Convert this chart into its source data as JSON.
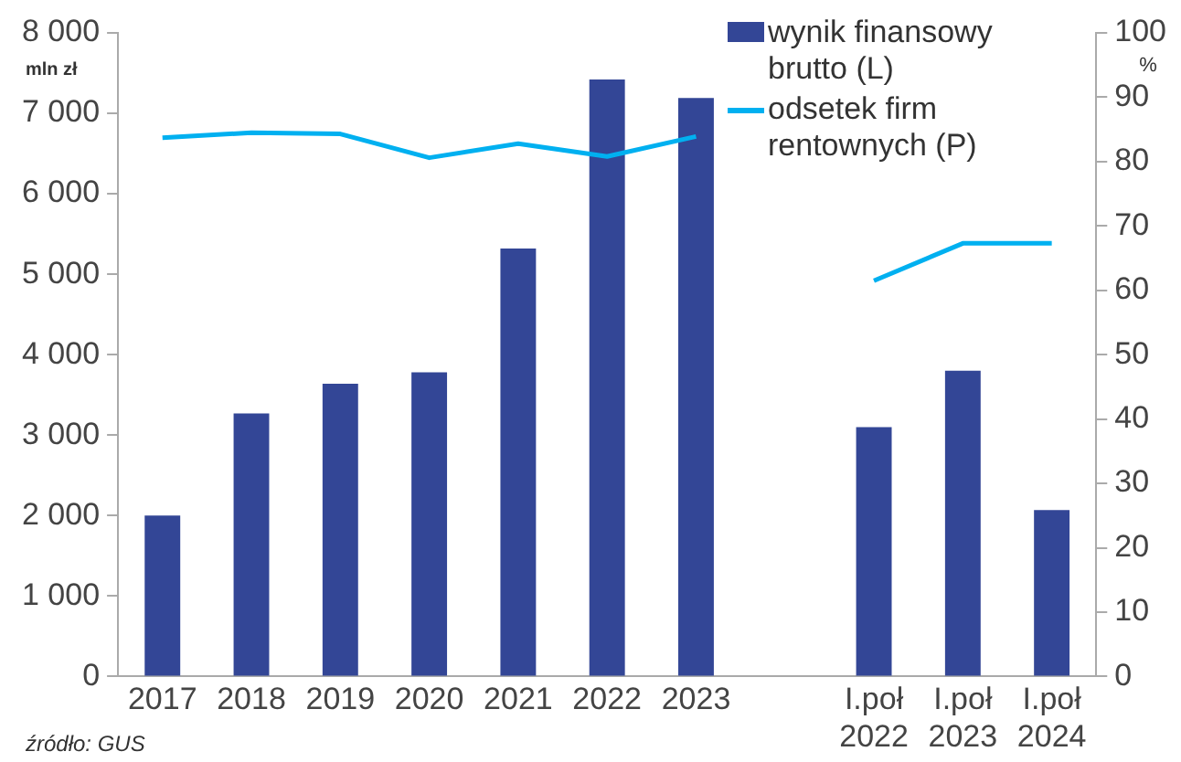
{
  "chart_data": {
    "type": "bar",
    "ylabel": "mln zł",
    "y2label": "%",
    "categories": [
      "2017",
      "2018",
      "2019",
      "2020",
      "2021",
      "2022",
      "2023",
      null,
      "I.poł 2022",
      "I.poł 2023",
      "I.poł 2024"
    ],
    "series": [
      {
        "name": "wynik finansowy brutto (L)",
        "color": "#334696",
        "values": [
          2000,
          3270,
          3640,
          3780,
          5320,
          7420,
          7190,
          null,
          3100,
          3800,
          2070
        ]
      },
      {
        "name": "odsetek firm rentownych (P)",
        "type": "line",
        "axis": "y2",
        "color": "#00b0f0",
        "values": [
          83.7,
          84.5,
          84.3,
          80.6,
          82.8,
          80.8,
          83.9,
          null,
          61.5,
          67.3,
          67.3
        ]
      }
    ],
    "ylim": [
      0,
      8000
    ],
    "yticks": [
      {
        "value": 0,
        "label": "0"
      },
      {
        "value": 1000,
        "label": "1 000"
      },
      {
        "value": 2000,
        "label": "2 000"
      },
      {
        "value": 3000,
        "label": "3 000"
      },
      {
        "value": 4000,
        "label": "4 000"
      },
      {
        "value": 5000,
        "label": "5 000"
      },
      {
        "value": 6000,
        "label": "6 000"
      },
      {
        "value": 7000,
        "label": "7 000"
      },
      {
        "value": 8000,
        "label": "8 000"
      }
    ],
    "y2lim": [
      0,
      100
    ],
    "y2ticks": [
      0,
      10,
      20,
      30,
      40,
      50,
      60,
      70,
      80,
      90,
      100
    ],
    "grid": false,
    "legend": "top right",
    "marker": "none",
    "line_style": "solid",
    "annotations": [
      "źródło: GUS"
    ]
  }
}
